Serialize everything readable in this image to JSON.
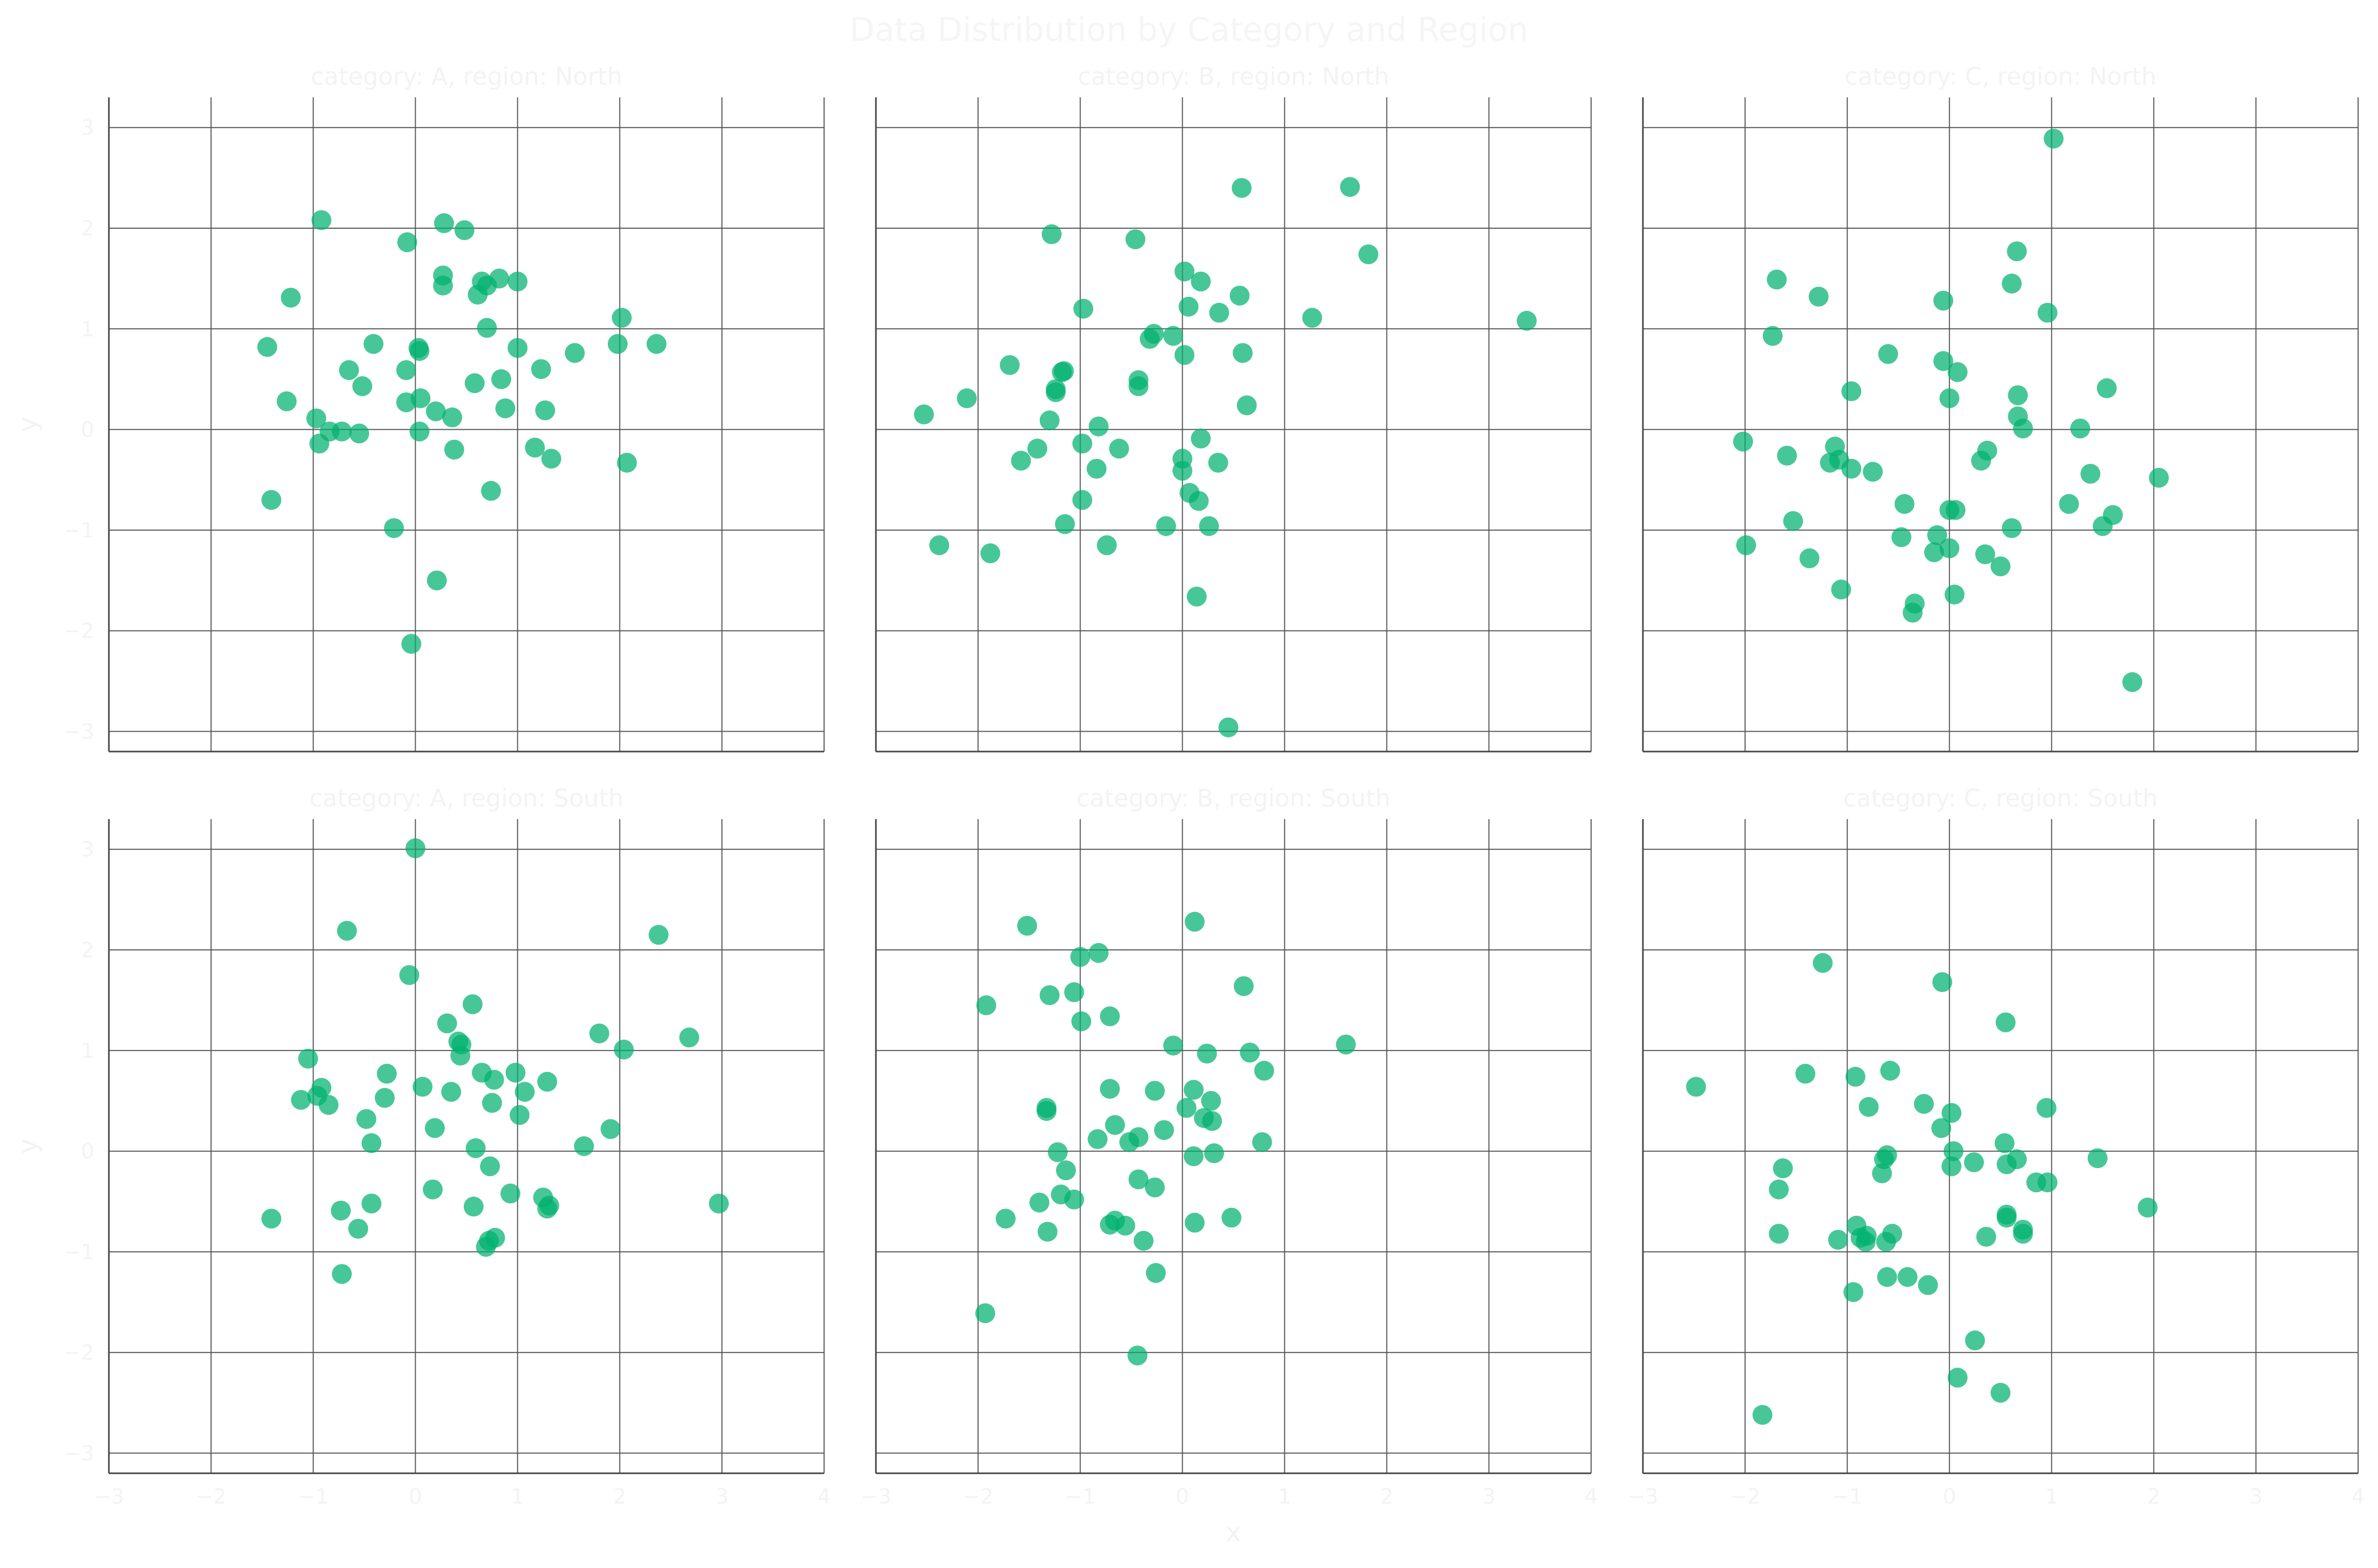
{
  "chart_data": {
    "type": "scatter",
    "title": "Data Distribution by Category and Region",
    "xlabel": "x",
    "ylabel": "y",
    "xlim": [
      -3,
      4
    ],
    "ylim": [
      -3.2,
      3.3
    ],
    "xticks": [
      -3,
      -2,
      -1,
      0,
      1,
      2,
      3,
      4
    ],
    "yticks": [
      -3,
      -2,
      -1,
      0,
      1,
      2,
      3
    ],
    "grid": true,
    "color": "#00b26f",
    "layout": {
      "rows": 2,
      "cols": 3
    },
    "panels": [
      {
        "title": "category: A, region: North",
        "points": [
          [
            -0.92,
            2.08
          ],
          [
            0.28,
            2.05
          ],
          [
            0.48,
            1.98
          ],
          [
            -0.08,
            1.86
          ],
          [
            -1.22,
            1.31
          ],
          [
            0.27,
            1.53
          ],
          [
            0.27,
            1.43
          ],
          [
            0.65,
            1.47
          ],
          [
            0.7,
            1.43
          ],
          [
            0.82,
            1.5
          ],
          [
            1.0,
            1.47
          ],
          [
            0.61,
            1.34
          ],
          [
            2.02,
            1.11
          ],
          [
            0.7,
            1.01
          ],
          [
            -1.45,
            0.82
          ],
          [
            -0.41,
            0.85
          ],
          [
            0.03,
            0.81
          ],
          [
            0.04,
            0.78
          ],
          [
            1.0,
            0.81
          ],
          [
            1.56,
            0.76
          ],
          [
            1.98,
            0.85
          ],
          [
            2.36,
            0.85
          ],
          [
            -0.65,
            0.59
          ],
          [
            -0.09,
            0.59
          ],
          [
            1.23,
            0.6
          ],
          [
            0.84,
            0.5
          ],
          [
            -0.52,
            0.43
          ],
          [
            0.58,
            0.46
          ],
          [
            -1.26,
            0.28
          ],
          [
            0.05,
            0.31
          ],
          [
            -0.09,
            0.27
          ],
          [
            0.2,
            0.18
          ],
          [
            -0.97,
            0.11
          ],
          [
            0.36,
            0.12
          ],
          [
            0.88,
            0.21
          ],
          [
            1.27,
            0.19
          ],
          [
            -0.84,
            -0.02
          ],
          [
            -0.72,
            -0.02
          ],
          [
            -0.55,
            -0.04
          ],
          [
            0.04,
            -0.02
          ],
          [
            -0.94,
            -0.14
          ],
          [
            0.38,
            -0.2
          ],
          [
            1.17,
            -0.18
          ],
          [
            1.33,
            -0.29
          ],
          [
            2.07,
            -0.33
          ],
          [
            -1.41,
            -0.7
          ],
          [
            0.74,
            -0.61
          ],
          [
            -0.21,
            -0.98
          ],
          [
            0.21,
            -1.5
          ],
          [
            -0.04,
            -2.13
          ]
        ]
      },
      {
        "title": "category: B, region: North",
        "points": [
          [
            0.58,
            2.4
          ],
          [
            1.64,
            2.41
          ],
          [
            1.82,
            1.74
          ],
          [
            -1.28,
            1.94
          ],
          [
            -0.46,
            1.89
          ],
          [
            0.02,
            1.57
          ],
          [
            0.18,
            1.47
          ],
          [
            0.56,
            1.33
          ],
          [
            0.06,
            1.22
          ],
          [
            0.36,
            1.16
          ],
          [
            1.27,
            1.11
          ],
          [
            3.37,
            1.08
          ],
          [
            -0.97,
            1.2
          ],
          [
            -0.32,
            0.9
          ],
          [
            -0.28,
            0.95
          ],
          [
            -0.09,
            0.93
          ],
          [
            0.02,
            0.74
          ],
          [
            0.59,
            0.76
          ],
          [
            -1.69,
            0.64
          ],
          [
            -1.16,
            0.58
          ],
          [
            -1.18,
            0.57
          ],
          [
            -0.43,
            0.49
          ],
          [
            -0.43,
            0.43
          ],
          [
            -1.24,
            0.4
          ],
          [
            -1.24,
            0.37
          ],
          [
            0.63,
            0.24
          ],
          [
            -2.53,
            0.15
          ],
          [
            -2.11,
            0.31
          ],
          [
            -1.3,
            0.09
          ],
          [
            -0.82,
            0.03
          ],
          [
            0.18,
            -0.09
          ],
          [
            -0.98,
            -0.14
          ],
          [
            -1.42,
            -0.19
          ],
          [
            -1.58,
            -0.31
          ],
          [
            -0.62,
            -0.19
          ],
          [
            0.0,
            -0.29
          ],
          [
            -0.84,
            -0.39
          ],
          [
            0.35,
            -0.33
          ],
          [
            0.0,
            -0.41
          ],
          [
            0.07,
            -0.63
          ],
          [
            0.16,
            -0.71
          ],
          [
            -0.98,
            -0.7
          ],
          [
            -1.15,
            -0.94
          ],
          [
            -0.16,
            -0.96
          ],
          [
            0.26,
            -0.96
          ],
          [
            -0.74,
            -1.15
          ],
          [
            -2.38,
            -1.15
          ],
          [
            -1.88,
            -1.23
          ],
          [
            0.14,
            -1.66
          ],
          [
            0.45,
            -2.96
          ]
        ]
      },
      {
        "title": "category: C, region: North",
        "points": [
          [
            1.02,
            2.89
          ],
          [
            0.66,
            1.77
          ],
          [
            -1.69,
            1.49
          ],
          [
            -1.28,
            1.32
          ],
          [
            0.61,
            1.45
          ],
          [
            -0.06,
            1.28
          ],
          [
            0.96,
            1.16
          ],
          [
            -1.73,
            0.93
          ],
          [
            -0.6,
            0.75
          ],
          [
            -0.06,
            0.68
          ],
          [
            0.08,
            0.57
          ],
          [
            -0.96,
            0.38
          ],
          [
            1.54,
            0.41
          ],
          [
            0.67,
            0.34
          ],
          [
            0.0,
            0.31
          ],
          [
            0.67,
            0.13
          ],
          [
            0.72,
            0.01
          ],
          [
            1.28,
            0.01
          ],
          [
            -2.02,
            -0.12
          ],
          [
            -1.12,
            -0.17
          ],
          [
            -1.59,
            -0.26
          ],
          [
            -1.08,
            -0.3
          ],
          [
            -1.17,
            -0.33
          ],
          [
            0.37,
            -0.21
          ],
          [
            0.31,
            -0.31
          ],
          [
            -0.96,
            -0.39
          ],
          [
            -0.75,
            -0.42
          ],
          [
            1.38,
            -0.44
          ],
          [
            2.05,
            -0.48
          ],
          [
            -0.44,
            -0.74
          ],
          [
            0.06,
            -0.8
          ],
          [
            0.0,
            -0.8
          ],
          [
            1.17,
            -0.74
          ],
          [
            1.6,
            -0.85
          ],
          [
            -1.53,
            -0.91
          ],
          [
            1.5,
            -0.96
          ],
          [
            0.61,
            -0.98
          ],
          [
            -0.12,
            -1.05
          ],
          [
            -0.47,
            -1.07
          ],
          [
            -1.99,
            -1.15
          ],
          [
            -0.15,
            -1.22
          ],
          [
            0.0,
            -1.18
          ],
          [
            0.35,
            -1.24
          ],
          [
            -1.37,
            -1.28
          ],
          [
            0.5,
            -1.36
          ],
          [
            -1.06,
            -1.59
          ],
          [
            0.05,
            -1.64
          ],
          [
            -0.34,
            -1.73
          ],
          [
            -0.36,
            -1.82
          ],
          [
            1.79,
            -2.51
          ]
        ]
      },
      {
        "title": "category: A, region: South",
        "points": [
          [
            0.0,
            3.01
          ],
          [
            -0.67,
            2.19
          ],
          [
            2.38,
            2.15
          ],
          [
            -0.06,
            1.75
          ],
          [
            0.56,
            1.46
          ],
          [
            0.31,
            1.27
          ],
          [
            1.8,
            1.17
          ],
          [
            2.68,
            1.13
          ],
          [
            0.42,
            1.09
          ],
          [
            0.45,
            1.06
          ],
          [
            2.04,
            1.01
          ],
          [
            0.44,
            0.95
          ],
          [
            -1.05,
            0.92
          ],
          [
            0.65,
            0.78
          ],
          [
            0.77,
            0.71
          ],
          [
            0.98,
            0.78
          ],
          [
            -0.28,
            0.77
          ],
          [
            1.29,
            0.69
          ],
          [
            0.07,
            0.64
          ],
          [
            -0.92,
            0.63
          ],
          [
            0.35,
            0.59
          ],
          [
            1.07,
            0.59
          ],
          [
            -0.96,
            0.55
          ],
          [
            -0.3,
            0.53
          ],
          [
            -1.12,
            0.51
          ],
          [
            -0.85,
            0.46
          ],
          [
            0.75,
            0.48
          ],
          [
            1.02,
            0.36
          ],
          [
            -0.48,
            0.32
          ],
          [
            0.19,
            0.23
          ],
          [
            1.91,
            0.22
          ],
          [
            -0.43,
            0.08
          ],
          [
            1.65,
            0.05
          ],
          [
            0.59,
            0.03
          ],
          [
            0.73,
            -0.15
          ],
          [
            0.17,
            -0.38
          ],
          [
            0.93,
            -0.42
          ],
          [
            1.25,
            -0.46
          ],
          [
            1.31,
            -0.54
          ],
          [
            1.29,
            -0.57
          ],
          [
            2.97,
            -0.52
          ],
          [
            -0.43,
            -0.52
          ],
          [
            0.57,
            -0.55
          ],
          [
            -0.73,
            -0.59
          ],
          [
            -1.41,
            -0.67
          ],
          [
            -0.56,
            -0.77
          ],
          [
            0.78,
            -0.86
          ],
          [
            0.72,
            -0.89
          ],
          [
            0.69,
            -0.95
          ],
          [
            -0.72,
            -1.22
          ]
        ]
      },
      {
        "title": "category: B, region: South",
        "points": [
          [
            0.12,
            2.28
          ],
          [
            -1.52,
            2.24
          ],
          [
            -0.82,
            1.97
          ],
          [
            -1.0,
            1.93
          ],
          [
            0.6,
            1.64
          ],
          [
            -1.3,
            1.55
          ],
          [
            -1.06,
            1.58
          ],
          [
            -1.92,
            1.45
          ],
          [
            -0.71,
            1.34
          ],
          [
            -0.99,
            1.29
          ],
          [
            1.6,
            1.06
          ],
          [
            -0.09,
            1.05
          ],
          [
            0.24,
            0.97
          ],
          [
            0.66,
            0.98
          ],
          [
            0.8,
            0.8
          ],
          [
            -0.71,
            0.62
          ],
          [
            0.11,
            0.61
          ],
          [
            -0.27,
            0.6
          ],
          [
            0.28,
            0.5
          ],
          [
            0.04,
            0.43
          ],
          [
            0.21,
            0.33
          ],
          [
            0.29,
            0.3
          ],
          [
            -1.33,
            0.43
          ],
          [
            -1.33,
            0.4
          ],
          [
            -0.66,
            0.26
          ],
          [
            -0.18,
            0.21
          ],
          [
            -0.43,
            0.14
          ],
          [
            -0.83,
            0.12
          ],
          [
            -0.52,
            0.09
          ],
          [
            0.78,
            0.09
          ],
          [
            -1.22,
            -0.01
          ],
          [
            0.11,
            -0.05
          ],
          [
            0.31,
            -0.02
          ],
          [
            -1.14,
            -0.19
          ],
          [
            -0.43,
            -0.28
          ],
          [
            -0.27,
            -0.36
          ],
          [
            -1.19,
            -0.43
          ],
          [
            -1.06,
            -0.48
          ],
          [
            -1.4,
            -0.51
          ],
          [
            -1.73,
            -0.67
          ],
          [
            -0.66,
            -0.69
          ],
          [
            0.48,
            -0.66
          ],
          [
            0.12,
            -0.71
          ],
          [
            -0.56,
            -0.74
          ],
          [
            -0.71,
            -0.73
          ],
          [
            -1.32,
            -0.8
          ],
          [
            -0.38,
            -0.89
          ],
          [
            -0.26,
            -1.21
          ],
          [
            -1.93,
            -1.61
          ],
          [
            -0.44,
            -2.03
          ]
        ]
      },
      {
        "title": "category: C, region: South",
        "points": [
          [
            -1.24,
            1.87
          ],
          [
            -0.07,
            1.68
          ],
          [
            0.55,
            1.28
          ],
          [
            -2.48,
            0.64
          ],
          [
            -1.41,
            0.77
          ],
          [
            -0.58,
            0.8
          ],
          [
            -0.92,
            0.74
          ],
          [
            -0.25,
            0.47
          ],
          [
            0.02,
            0.38
          ],
          [
            0.95,
            0.43
          ],
          [
            -0.79,
            0.44
          ],
          [
            -0.08,
            0.23
          ],
          [
            0.54,
            0.08
          ],
          [
            0.04,
            0.0
          ],
          [
            -0.64,
            -0.08
          ],
          [
            -0.61,
            -0.04
          ],
          [
            1.45,
            -0.07
          ],
          [
            0.24,
            -0.11
          ],
          [
            0.56,
            -0.13
          ],
          [
            0.66,
            -0.08
          ],
          [
            0.02,
            -0.15
          ],
          [
            -1.63,
            -0.17
          ],
          [
            -0.66,
            -0.22
          ],
          [
            0.85,
            -0.31
          ],
          [
            0.96,
            -0.31
          ],
          [
            -1.67,
            -0.38
          ],
          [
            1.94,
            -0.56
          ],
          [
            0.56,
            -0.63
          ],
          [
            0.56,
            -0.66
          ],
          [
            0.72,
            -0.78
          ],
          [
            0.72,
            -0.82
          ],
          [
            -0.91,
            -0.74
          ],
          [
            -0.81,
            -0.84
          ],
          [
            -1.67,
            -0.82
          ],
          [
            -0.56,
            -0.82
          ],
          [
            -0.87,
            -0.86
          ],
          [
            -0.62,
            -0.9
          ],
          [
            0.36,
            -0.85
          ],
          [
            -0.82,
            -0.9
          ],
          [
            -1.09,
            -0.88
          ],
          [
            -0.61,
            -1.25
          ],
          [
            -0.41,
            -1.25
          ],
          [
            -0.21,
            -1.33
          ],
          [
            -0.94,
            -1.4
          ],
          [
            0.25,
            -1.88
          ],
          [
            0.08,
            -2.25
          ],
          [
            0.5,
            -2.4
          ],
          [
            -1.83,
            -2.62
          ]
        ]
      }
    ]
  }
}
